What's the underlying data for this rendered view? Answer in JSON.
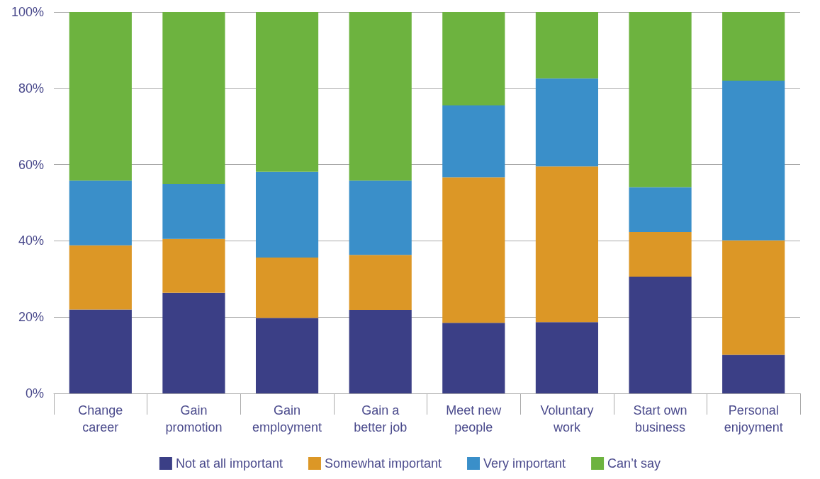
{
  "chart_data": {
    "type": "bar",
    "stacked": true,
    "categories": [
      "Change\ncareer",
      "Gain\npromotion",
      "Gain\nemployment",
      "Gain a\nbetter job",
      "Meet new\npeople",
      "Voluntary\nwork",
      "Start own\nbusiness",
      "Personal\nenjoyment"
    ],
    "series": [
      {
        "name": "Not at all important",
        "color": "#3b3f86",
        "values": [
          22,
          26.4,
          19.8,
          21.9,
          18.5,
          18.7,
          30.6,
          10.1
        ]
      },
      {
        "name": "Somewhat important",
        "color": "#dc9726",
        "values": [
          16.8,
          14.1,
          15.8,
          14.4,
          38.2,
          40.8,
          11.7,
          30
        ]
      },
      {
        "name": "Very important",
        "color": "#3a8fc9",
        "values": [
          17,
          14.4,
          22.5,
          19.5,
          18.8,
          23.1,
          11.8,
          41.9
        ]
      },
      {
        "name": "Can’t say",
        "color": "#6db33f",
        "values": [
          44.2,
          45.1,
          41.9,
          44.2,
          24.5,
          17.4,
          45.9,
          18
        ]
      }
    ],
    "ylim": [
      0,
      100
    ],
    "yticks": [
      {
        "value": 0,
        "label": "0%"
      },
      {
        "value": 20,
        "label": "20%"
      },
      {
        "value": 40,
        "label": "40%"
      },
      {
        "value": 60,
        "label": "60%"
      },
      {
        "value": 80,
        "label": "80%"
      },
      {
        "value": 100,
        "label": "100%"
      }
    ],
    "grid": "y",
    "legend": "bottom"
  }
}
